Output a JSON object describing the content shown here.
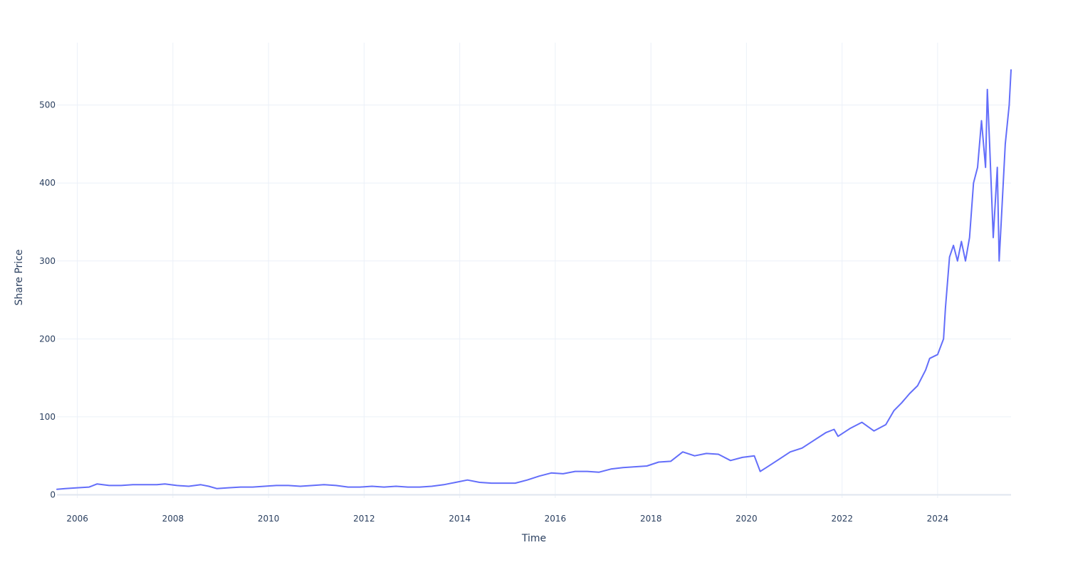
{
  "chart_data": {
    "type": "line",
    "title": "",
    "xlabel": "Time",
    "ylabel": "Share Price",
    "xlim": [
      "2005-07-29",
      "2025-07-15"
    ],
    "ylim": [
      -4.1,
      580
    ],
    "x_ticks": [
      "2006",
      "2008",
      "2010",
      "2012",
      "2014",
      "2016",
      "2018",
      "2020",
      "2022",
      "2024"
    ],
    "y_ticks": [
      "0",
      "100",
      "200",
      "300",
      "400",
      "500"
    ],
    "grid": true,
    "legend": "none",
    "line_color": "#636efa",
    "series": [
      {
        "x": [
          "2005-07-29",
          "2005-10-01",
          "2006-01-01",
          "2006-04-01",
          "2006-06-01",
          "2006-09-01",
          "2006-12-01",
          "2007-03-01",
          "2007-06-01",
          "2007-09-01",
          "2007-11-01",
          "2008-02-01",
          "2008-05-01",
          "2008-08-01",
          "2008-10-01",
          "2008-12-01",
          "2009-03-01",
          "2009-06-01",
          "2009-09-01",
          "2009-12-01",
          "2010-03-01",
          "2010-06-01",
          "2010-09-01",
          "2010-12-01",
          "2011-03-01",
          "2011-06-01",
          "2011-09-01",
          "2011-12-01",
          "2012-03-01",
          "2012-06-01",
          "2012-09-01",
          "2012-12-01",
          "2013-03-01",
          "2013-06-01",
          "2013-09-01",
          "2013-12-01",
          "2014-03-01",
          "2014-06-01",
          "2014-09-01",
          "2014-12-01",
          "2015-03-01",
          "2015-06-01",
          "2015-09-01",
          "2015-12-01",
          "2016-03-01",
          "2016-06-01",
          "2016-09-01",
          "2016-12-01",
          "2017-03-01",
          "2017-06-01",
          "2017-09-01",
          "2017-12-01",
          "2018-03-01",
          "2018-06-01",
          "2018-09-01",
          "2018-12-01",
          "2019-03-01",
          "2019-06-01",
          "2019-09-01",
          "2019-12-01",
          "2020-03-01",
          "2020-04-15",
          "2020-06-01",
          "2020-09-01",
          "2020-12-01",
          "2021-03-01",
          "2021-06-01",
          "2021-09-01",
          "2021-11-01",
          "2021-12-01",
          "2022-03-01",
          "2022-06-01",
          "2022-09-01",
          "2022-12-01",
          "2023-02-01",
          "2023-04-01",
          "2023-06-01",
          "2023-08-01",
          "2023-10-01",
          "2023-11-01",
          "2024-01-01",
          "2024-02-15",
          "2024-03-01",
          "2024-04-01",
          "2024-05-01",
          "2024-06-01",
          "2024-07-01",
          "2024-08-01",
          "2024-09-01",
          "2024-10-01",
          "2024-11-01",
          "2024-12-01",
          "2025-01-01",
          "2025-01-15",
          "2025-02-01",
          "2025-03-01",
          "2025-04-01",
          "2025-04-15",
          "2025-05-01",
          "2025-06-01",
          "2025-07-01",
          "2025-07-15"
        ],
        "y": [
          7,
          8,
          9,
          10,
          14,
          12,
          12,
          13,
          13,
          13,
          14,
          12,
          11,
          13,
          11,
          8,
          9,
          10,
          10,
          11,
          12,
          12,
          11,
          12,
          13,
          12,
          10,
          10,
          11,
          10,
          11,
          10,
          10,
          11,
          13,
          16,
          19,
          16,
          15,
          15,
          15,
          19,
          24,
          28,
          27,
          30,
          30,
          29,
          33,
          35,
          36,
          37,
          42,
          43,
          55,
          50,
          53,
          52,
          44,
          48,
          50,
          30,
          35,
          45,
          55,
          60,
          70,
          80,
          84,
          75,
          85,
          93,
          82,
          90,
          108,
          118,
          130,
          140,
          160,
          175,
          180,
          200,
          240,
          305,
          320,
          300,
          325,
          300,
          330,
          400,
          420,
          480,
          420,
          520,
          450,
          330,
          420,
          300,
          350,
          450,
          500,
          545
        ]
      }
    ]
  }
}
